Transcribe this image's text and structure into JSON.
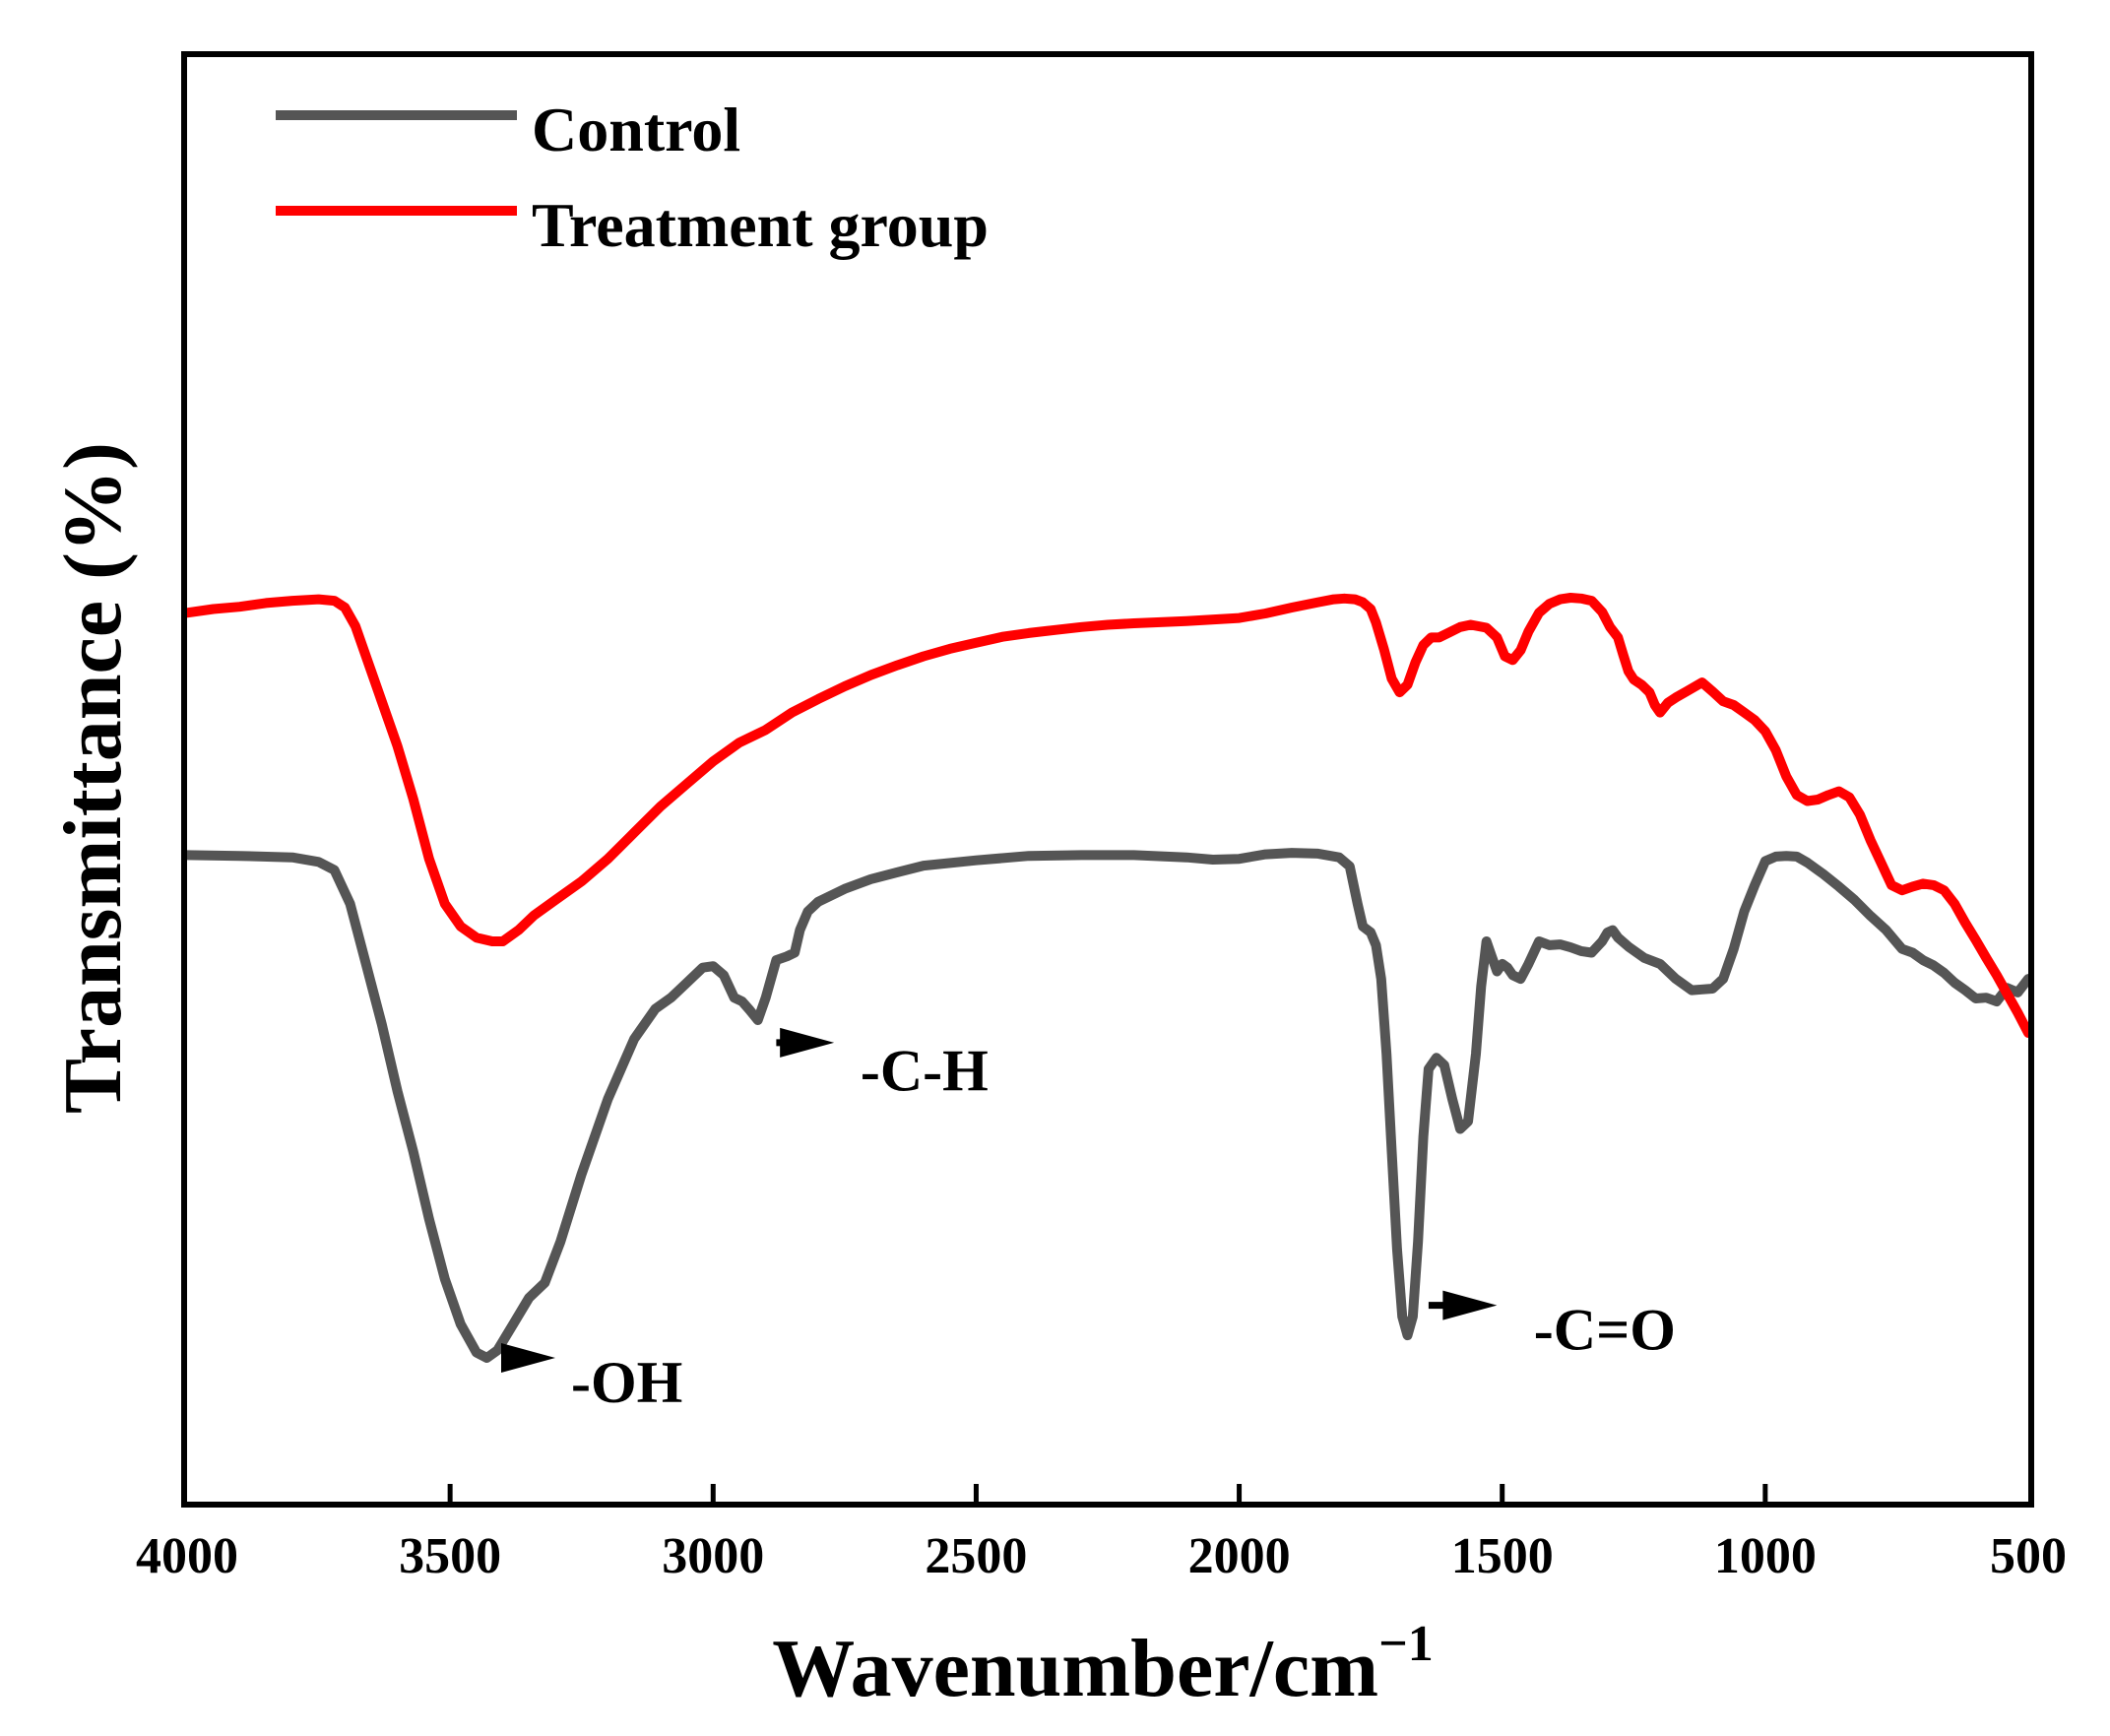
{
  "chart_data": {
    "type": "line",
    "title": "",
    "xlabel": "Wavenumber/cm",
    "xlabel_superscript": "−1",
    "ylabel": "Transmittance (%)",
    "xlim": [
      4000,
      500
    ],
    "ylim": [
      0,
      100
    ],
    "x_inverted": true,
    "yticks_shown": false,
    "x_ticks": [
      4000,
      3500,
      3000,
      2500,
      2000,
      1500,
      1000,
      500
    ],
    "x_tick_labels": [
      "4000",
      "3500",
      "3000",
      "2500",
      "2000",
      "1500",
      "1000",
      "500"
    ],
    "legend": {
      "placement": "top-left"
    },
    "series": [
      {
        "name": "Control",
        "color": "#555555",
        "points": [
          [
            4000,
            69.5
          ],
          [
            3900,
            69.4
          ],
          [
            3800,
            69.2
          ],
          [
            3750,
            68.6
          ],
          [
            3720,
            67.5
          ],
          [
            3690,
            63
          ],
          [
            3660,
            55
          ],
          [
            3630,
            47
          ],
          [
            3600,
            38
          ],
          [
            3570,
            30
          ],
          [
            3540,
            21
          ],
          [
            3510,
            13
          ],
          [
            3480,
            7
          ],
          [
            3450,
            3.2
          ],
          [
            3430,
            2.5
          ],
          [
            3410,
            3.5
          ],
          [
            3380,
            7
          ],
          [
            3350,
            10.5
          ],
          [
            3320,
            12.5
          ],
          [
            3290,
            18
          ],
          [
            3250,
            27
          ],
          [
            3200,
            37
          ],
          [
            3150,
            45
          ],
          [
            3110,
            49
          ],
          [
            3080,
            50.5
          ],
          [
            3050,
            52.5
          ],
          [
            3020,
            54.5
          ],
          [
            3000,
            54.7
          ],
          [
            2980,
            53.5
          ],
          [
            2960,
            50.5
          ],
          [
            2945,
            50
          ],
          [
            2930,
            48.8
          ],
          [
            2915,
            47.5
          ],
          [
            2900,
            50.5
          ],
          [
            2880,
            55.5
          ],
          [
            2860,
            56
          ],
          [
            2845,
            56.5
          ],
          [
            2835,
            59.5
          ],
          [
            2820,
            62
          ],
          [
            2800,
            63.3
          ],
          [
            2750,
            65
          ],
          [
            2700,
            66.3
          ],
          [
            2650,
            67.2
          ],
          [
            2600,
            68.1
          ],
          [
            2500,
            68.8
          ],
          [
            2400,
            69.4
          ],
          [
            2300,
            69.5
          ],
          [
            2200,
            69.5
          ],
          [
            2100,
            69.2
          ],
          [
            2050,
            68.9
          ],
          [
            2000,
            69
          ],
          [
            1950,
            69.6
          ],
          [
            1900,
            69.8
          ],
          [
            1850,
            69.7
          ],
          [
            1810,
            69.2
          ],
          [
            1790,
            68
          ],
          [
            1775,
            63
          ],
          [
            1765,
            60
          ],
          [
            1750,
            59.2
          ],
          [
            1740,
            57.5
          ],
          [
            1730,
            53
          ],
          [
            1720,
            43
          ],
          [
            1710,
            30
          ],
          [
            1700,
            17
          ],
          [
            1690,
            8
          ],
          [
            1680,
            5.5
          ],
          [
            1670,
            8
          ],
          [
            1660,
            18
          ],
          [
            1650,
            32
          ],
          [
            1640,
            41
          ],
          [
            1625,
            42.5
          ],
          [
            1610,
            41.5
          ],
          [
            1595,
            37
          ],
          [
            1580,
            33
          ],
          [
            1565,
            34
          ],
          [
            1550,
            43
          ],
          [
            1540,
            52
          ],
          [
            1530,
            58
          ],
          [
            1520,
            56
          ],
          [
            1510,
            54
          ],
          [
            1500,
            55
          ],
          [
            1490,
            54.5
          ],
          [
            1480,
            53.5
          ],
          [
            1465,
            53
          ],
          [
            1450,
            55
          ],
          [
            1430,
            58
          ],
          [
            1410,
            57.5
          ],
          [
            1390,
            57.6
          ],
          [
            1370,
            57.2
          ],
          [
            1350,
            56.7
          ],
          [
            1330,
            56.5
          ],
          [
            1310,
            58
          ],
          [
            1300,
            59.2
          ],
          [
            1290,
            59.5
          ],
          [
            1280,
            58.5
          ],
          [
            1260,
            57.3
          ],
          [
            1230,
            55.8
          ],
          [
            1200,
            55
          ],
          [
            1170,
            53
          ],
          [
            1140,
            51.5
          ],
          [
            1120,
            51.6
          ],
          [
            1100,
            51.7
          ],
          [
            1080,
            53
          ],
          [
            1060,
            57
          ],
          [
            1040,
            62
          ],
          [
            1020,
            65.5
          ],
          [
            1000,
            68.7
          ],
          [
            980,
            69.3
          ],
          [
            960,
            69.4
          ],
          [
            940,
            69.3
          ],
          [
            920,
            68.5
          ],
          [
            890,
            67
          ],
          [
            860,
            65.3
          ],
          [
            830,
            63.5
          ],
          [
            800,
            61.4
          ],
          [
            770,
            59.5
          ],
          [
            740,
            57
          ],
          [
            720,
            56.5
          ],
          [
            700,
            55.5
          ],
          [
            680,
            54.8
          ],
          [
            660,
            53.8
          ],
          [
            640,
            52.5
          ],
          [
            620,
            51.5
          ],
          [
            600,
            50.4
          ],
          [
            580,
            50.5
          ],
          [
            560,
            50
          ],
          [
            540,
            51.8
          ],
          [
            520,
            51.2
          ],
          [
            500,
            53
          ]
        ]
      },
      {
        "name": "Treatment group",
        "color": "#ff0000",
        "points": [
          [
            4000,
            101.8
          ],
          [
            3950,
            102.3
          ],
          [
            3900,
            102.6
          ],
          [
            3850,
            103.1
          ],
          [
            3800,
            103.4
          ],
          [
            3750,
            103.6
          ],
          [
            3720,
            103.4
          ],
          [
            3700,
            102.5
          ],
          [
            3680,
            100
          ],
          [
            3660,
            96
          ],
          [
            3630,
            90
          ],
          [
            3600,
            84
          ],
          [
            3570,
            77
          ],
          [
            3540,
            69
          ],
          [
            3510,
            63
          ],
          [
            3480,
            60
          ],
          [
            3450,
            58.5
          ],
          [
            3420,
            58
          ],
          [
            3400,
            58
          ],
          [
            3370,
            59.5
          ],
          [
            3340,
            61.5
          ],
          [
            3300,
            63.5
          ],
          [
            3250,
            66
          ],
          [
            3200,
            69
          ],
          [
            3150,
            72.5
          ],
          [
            3100,
            76
          ],
          [
            3050,
            79
          ],
          [
            3000,
            82
          ],
          [
            2950,
            84.5
          ],
          [
            2900,
            86.2
          ],
          [
            2850,
            88.5
          ],
          [
            2800,
            90.3
          ],
          [
            2750,
            92
          ],
          [
            2700,
            93.5
          ],
          [
            2650,
            94.8
          ],
          [
            2600,
            96
          ],
          [
            2550,
            97
          ],
          [
            2500,
            97.8
          ],
          [
            2450,
            98.6
          ],
          [
            2400,
            99.1
          ],
          [
            2350,
            99.5
          ],
          [
            2300,
            99.9
          ],
          [
            2250,
            100.2
          ],
          [
            2200,
            100.4
          ],
          [
            2100,
            100.7
          ],
          [
            2000,
            101.1
          ],
          [
            1950,
            101.7
          ],
          [
            1900,
            102.5
          ],
          [
            1850,
            103.2
          ],
          [
            1820,
            103.6
          ],
          [
            1800,
            103.7
          ],
          [
            1780,
            103.6
          ],
          [
            1765,
            103.2
          ],
          [
            1750,
            102.3
          ],
          [
            1740,
            100.5
          ],
          [
            1725,
            97
          ],
          [
            1710,
            93
          ],
          [
            1695,
            91.2
          ],
          [
            1680,
            92.2
          ],
          [
            1665,
            95.2
          ],
          [
            1650,
            97.5
          ],
          [
            1635,
            98.5
          ],
          [
            1620,
            98.5
          ],
          [
            1600,
            99.2
          ],
          [
            1580,
            99.9
          ],
          [
            1560,
            100.2
          ],
          [
            1530,
            99.8
          ],
          [
            1510,
            98.5
          ],
          [
            1495,
            96
          ],
          [
            1480,
            95.5
          ],
          [
            1465,
            96.8
          ],
          [
            1450,
            99.3
          ],
          [
            1430,
            101.8
          ],
          [
            1410,
            103
          ],
          [
            1390,
            103.6
          ],
          [
            1370,
            103.8
          ],
          [
            1350,
            103.7
          ],
          [
            1330,
            103.4
          ],
          [
            1310,
            101.9
          ],
          [
            1295,
            99.9
          ],
          [
            1280,
            98.5
          ],
          [
            1270,
            96.2
          ],
          [
            1260,
            94
          ],
          [
            1250,
            92.9
          ],
          [
            1235,
            92.2
          ],
          [
            1220,
            91.2
          ],
          [
            1210,
            89.5
          ],
          [
            1200,
            88.5
          ],
          [
            1185,
            89.8
          ],
          [
            1170,
            90.5
          ],
          [
            1150,
            91.3
          ],
          [
            1120,
            92.5
          ],
          [
            1100,
            91.3
          ],
          [
            1080,
            90
          ],
          [
            1060,
            89.5
          ],
          [
            1040,
            88.5
          ],
          [
            1020,
            87.5
          ],
          [
            1000,
            86
          ],
          [
            980,
            83.5
          ],
          [
            960,
            80
          ],
          [
            940,
            77.5
          ],
          [
            920,
            76.7
          ],
          [
            900,
            76.9
          ],
          [
            880,
            77.5
          ],
          [
            860,
            78
          ],
          [
            840,
            77.2
          ],
          [
            820,
            74.9
          ],
          [
            800,
            71.5
          ],
          [
            780,
            68.5
          ],
          [
            760,
            65.5
          ],
          [
            740,
            64.8
          ],
          [
            720,
            65.3
          ],
          [
            700,
            65.7
          ],
          [
            680,
            65.5
          ],
          [
            660,
            64.8
          ],
          [
            640,
            63
          ],
          [
            620,
            60.5
          ],
          [
            600,
            58.2
          ],
          [
            580,
            55.8
          ],
          [
            560,
            53.5
          ],
          [
            540,
            51
          ],
          [
            520,
            48.5
          ],
          [
            500,
            45.8
          ]
        ]
      }
    ],
    "annotations": [
      {
        "label": "-OH",
        "arrow_from": [
          3400,
          2.5
        ],
        "arrow_to": [
          3300,
          2.5
        ],
        "text_at": [
          3270,
          -0.5
        ]
      },
      {
        "label": "-C-H",
        "arrow_from": [
          2880,
          44.5
        ],
        "arrow_to": [
          2770,
          44.5
        ],
        "text_at": [
          2720,
          41
        ]
      },
      {
        "label": "-C=O",
        "arrow_from": [
          1640,
          9.5
        ],
        "arrow_to": [
          1510,
          9.5
        ],
        "text_at": [
          1440,
          6.5
        ]
      }
    ]
  }
}
